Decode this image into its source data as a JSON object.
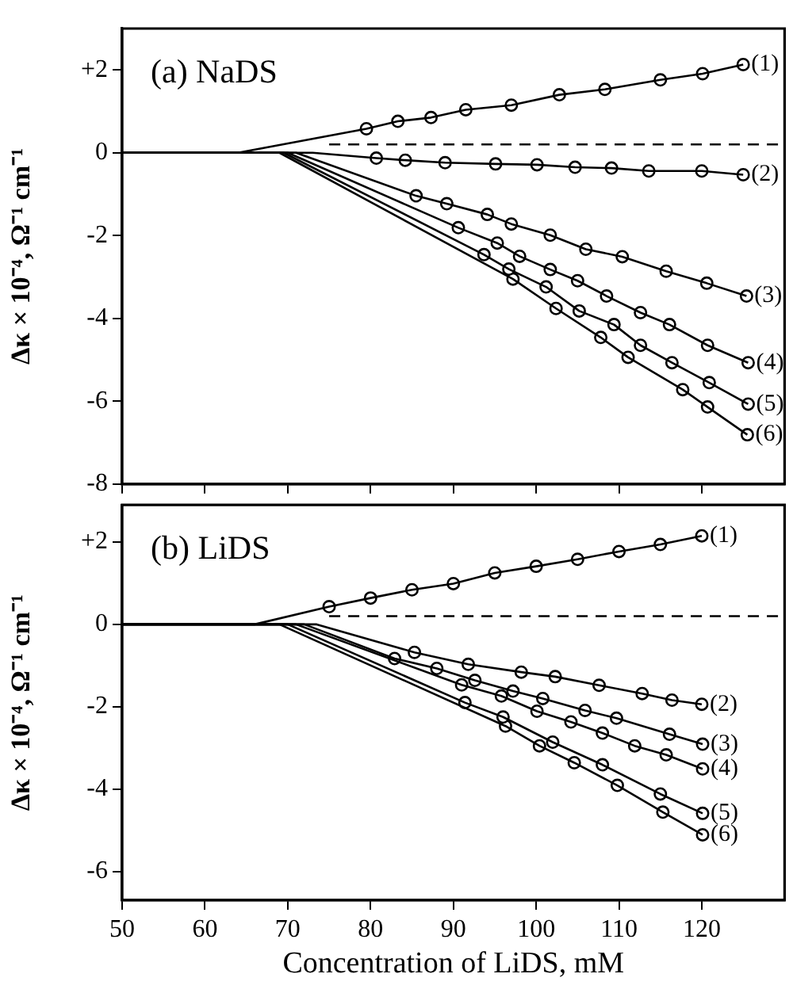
{
  "chart_data": [
    {
      "type": "line",
      "ylabel": "Δκ × 10⁻⁴, Ω⁻¹ cm⁻¹",
      "annotations": [
        "(a) NaDS"
      ],
      "xlim": [
        50,
        130
      ],
      "xticks": [
        50,
        60,
        70,
        80,
        90,
        100,
        110,
        120
      ],
      "ylim": [
        -8,
        3
      ],
      "yticks": [
        {
          "value": 2,
          "label": "+2"
        },
        0,
        -2,
        -4,
        -6,
        -8
      ],
      "tick_labels": "y",
      "series": [
        {
          "color": "#000000",
          "marker": "none",
          "line_style": "dashed",
          "x": [
            75,
            130
          ],
          "values": [
            0.2,
            0.2
          ]
        },
        {
          "color": "#000000",
          "marker": "none",
          "x": [
            50,
            64,
            79.5,
            83.3,
            87.3,
            91.5,
            97.0,
            102.8,
            108.3,
            115.0,
            120.1,
            125.0
          ],
          "values": [
            0,
            0,
            0.58,
            0.76,
            0.85,
            1.04,
            1.15,
            1.4,
            1.53,
            1.76,
            1.91,
            2.13
          ]
        },
        {
          "color": "#000000",
          "marker": "none",
          "x": [
            50,
            73,
            80.7,
            84.2,
            89.0,
            95.1,
            100.1,
            104.7,
            109.1,
            113.6,
            120.0,
            125.0
          ],
          "values": [
            0,
            0,
            -0.13,
            -0.18,
            -0.24,
            -0.27,
            -0.29,
            -0.35,
            -0.37,
            -0.44,
            -0.44,
            -0.53
          ]
        },
        {
          "color": "#000000",
          "marker": "none",
          "x": [
            50,
            71,
            85.5,
            89.2,
            94.1,
            97.0,
            101.7,
            106.0,
            110.4,
            115.7,
            120.6,
            125.4
          ],
          "values": [
            0,
            0,
            -1.04,
            -1.23,
            -1.49,
            -1.72,
            -1.99,
            -2.33,
            -2.51,
            -2.86,
            -3.15,
            -3.46
          ]
        },
        {
          "color": "#000000",
          "marker": "none",
          "x": [
            50,
            70,
            90.6,
            95.3,
            98.0,
            101.7,
            105.0,
            108.5,
            112.6,
            116.1,
            120.7,
            125.6
          ],
          "values": [
            0,
            0,
            -1.81,
            -2.18,
            -2.5,
            -2.82,
            -3.09,
            -3.46,
            -3.86,
            -4.15,
            -4.65,
            -5.07
          ]
        },
        {
          "color": "#000000",
          "marker": "none",
          "x": [
            50,
            69.5,
            93.7,
            96.7,
            101.2,
            105.2,
            109.4,
            112.6,
            116.4,
            120.9,
            125.6
          ],
          "values": [
            0,
            0,
            -2.46,
            -2.81,
            -3.24,
            -3.82,
            -4.15,
            -4.65,
            -5.07,
            -5.55,
            -6.07
          ]
        },
        {
          "color": "#000000",
          "marker": "none",
          "x": [
            50,
            69,
            97.2,
            102.4,
            107.8,
            111.1,
            117.7,
            120.7,
            125.5
          ],
          "values": [
            0,
            0,
            -3.05,
            -3.76,
            -4.46,
            -4.94,
            -5.72,
            -6.14,
            -6.81
          ]
        },
        {
          "type": "scatter",
          "name": "(1)",
          "color": "#000000",
          "marker": "circle",
          "x": [
            79.5,
            83.3,
            87.3,
            91.5,
            97.0,
            102.8,
            108.3,
            115.0,
            120.1,
            125.0
          ],
          "values": [
            0.58,
            0.76,
            0.85,
            1.04,
            1.15,
            1.4,
            1.53,
            1.76,
            1.91,
            2.13
          ]
        },
        {
          "type": "scatter",
          "name": "(2)",
          "color": "#000000",
          "marker": "circle",
          "x": [
            80.7,
            84.2,
            89.0,
            95.1,
            100.1,
            104.7,
            109.1,
            113.6,
            120.0,
            125.0
          ],
          "values": [
            -0.13,
            -0.18,
            -0.24,
            -0.27,
            -0.29,
            -0.35,
            -0.37,
            -0.44,
            -0.44,
            -0.53
          ]
        },
        {
          "type": "scatter",
          "name": "(3)",
          "color": "#000000",
          "marker": "circle",
          "x": [
            85.5,
            89.2,
            94.1,
            97.0,
            101.7,
            106.0,
            110.4,
            115.7,
            120.6,
            125.4
          ],
          "values": [
            -1.04,
            -1.23,
            -1.49,
            -1.72,
            -1.99,
            -2.33,
            -2.51,
            -2.86,
            -3.15,
            -3.46
          ]
        },
        {
          "type": "scatter",
          "name": "(4)",
          "color": "#000000",
          "marker": "circle",
          "x": [
            90.6,
            95.3,
            98.0,
            101.7,
            105.0,
            108.5,
            112.6,
            116.1,
            120.7,
            125.6
          ],
          "values": [
            -1.81,
            -2.18,
            -2.5,
            -2.82,
            -3.09,
            -3.46,
            -3.86,
            -4.15,
            -4.65,
            -5.07
          ]
        },
        {
          "type": "scatter",
          "name": "(5)",
          "color": "#000000",
          "marker": "circle",
          "x": [
            93.7,
            96.7,
            101.2,
            105.2,
            109.4,
            112.6,
            116.4,
            120.9,
            125.6
          ],
          "values": [
            -2.46,
            -2.81,
            -3.24,
            -3.82,
            -4.15,
            -4.65,
            -5.07,
            -5.55,
            -6.07
          ]
        },
        {
          "type": "scatter",
          "name": "(6)",
          "color": "#000000",
          "marker": "circle",
          "x": [
            97.2,
            102.4,
            107.8,
            111.1,
            117.7,
            120.7,
            125.5
          ],
          "values": [
            -3.05,
            -3.76,
            -4.46,
            -4.94,
            -5.72,
            -6.14,
            -6.81
          ]
        }
      ]
    },
    {
      "type": "line",
      "xlabel": "Concentration of LiDS, mM",
      "ylabel": "Δκ × 10⁻⁴, Ω⁻¹ cm⁻¹",
      "annotations": [
        "(b) LiDS"
      ],
      "xlim": [
        50,
        130
      ],
      "xticks": [
        50,
        60,
        70,
        80,
        90,
        100,
        110,
        120
      ],
      "ylim": [
        -6.7,
        2.9
      ],
      "yticks": [
        {
          "value": 2,
          "label": "+2"
        },
        0,
        -2,
        -4,
        -6
      ],
      "series": [
        {
          "color": "#000000",
          "marker": "none",
          "line_style": "dashed",
          "x": [
            75,
            130
          ],
          "values": [
            0.2,
            0.2
          ]
        },
        {
          "color": "#000000",
          "marker": "none",
          "x": [
            50,
            66,
            75,
            80,
            85,
            90,
            95,
            100,
            105,
            110,
            115,
            120
          ],
          "values": [
            0,
            0,
            0.43,
            0.64,
            0.84,
            0.99,
            1.25,
            1.41,
            1.58,
            1.77,
            1.94,
            2.15
          ]
        },
        {
          "color": "#000000",
          "marker": "none",
          "x": [
            50,
            73.5,
            85.3,
            91.8,
            98.2,
            102.3,
            107.6,
            112.8,
            116.4,
            120.0
          ],
          "values": [
            0,
            0,
            -0.68,
            -0.97,
            -1.16,
            -1.27,
            -1.48,
            -1.68,
            -1.84,
            -1.94
          ]
        },
        {
          "color": "#000000",
          "marker": "none",
          "x": [
            50,
            72,
            82.9,
            88.0,
            92.6,
            97.2,
            100.8,
            105.9,
            109.7,
            116.1,
            120.1
          ],
          "values": [
            0,
            0,
            -0.83,
            -1.07,
            -1.36,
            -1.62,
            -1.8,
            -2.09,
            -2.28,
            -2.67,
            -2.91
          ]
        },
        {
          "color": "#000000",
          "marker": "none",
          "x": [
            50,
            71,
            91.0,
            95.8,
            100.1,
            104.2,
            108.0,
            111.9,
            115.7,
            120.1
          ],
          "values": [
            0,
            0,
            -1.47,
            -1.74,
            -2.11,
            -2.37,
            -2.64,
            -2.95,
            -3.17,
            -3.51
          ]
        },
        {
          "color": "#000000",
          "marker": "none",
          "x": [
            50,
            70,
            91.4,
            96.0,
            102.0,
            108.0,
            115.0,
            120.1
          ],
          "values": [
            0,
            0,
            -1.9,
            -2.25,
            -2.86,
            -3.41,
            -4.12,
            -4.59
          ]
        },
        {
          "color": "#000000",
          "marker": "none",
          "x": [
            50,
            69,
            96.3,
            100.4,
            104.6,
            109.8,
            115.3,
            120.1
          ],
          "values": [
            0,
            0,
            -2.47,
            -2.95,
            -3.36,
            -3.91,
            -4.56,
            -5.11
          ]
        },
        {
          "type": "scatter",
          "name": "(1)",
          "color": "#000000",
          "marker": "circle",
          "x": [
            75,
            80,
            85,
            90,
            95,
            100,
            105,
            110,
            115,
            120
          ],
          "values": [
            0.43,
            0.64,
            0.84,
            0.99,
            1.25,
            1.41,
            1.58,
            1.77,
            1.94,
            2.15
          ]
        },
        {
          "type": "scatter",
          "name": "(2)",
          "color": "#000000",
          "marker": "circle",
          "x": [
            85.3,
            91.8,
            98.2,
            102.3,
            107.6,
            112.8,
            116.4,
            120.0
          ],
          "values": [
            -0.68,
            -0.97,
            -1.16,
            -1.27,
            -1.48,
            -1.68,
            -1.84,
            -1.94
          ]
        },
        {
          "type": "scatter",
          "name": "(3)",
          "color": "#000000",
          "marker": "circle",
          "x": [
            82.9,
            88.0,
            92.6,
            97.2,
            100.8,
            105.9,
            109.7,
            116.1,
            120.1
          ],
          "values": [
            -0.83,
            -1.07,
            -1.36,
            -1.62,
            -1.8,
            -2.09,
            -2.28,
            -2.67,
            -2.91
          ]
        },
        {
          "type": "scatter",
          "name": "(4)",
          "color": "#000000",
          "marker": "circle",
          "x": [
            91.0,
            95.8,
            100.1,
            104.2,
            108.0,
            111.9,
            115.7,
            120.1
          ],
          "values": [
            -1.47,
            -1.74,
            -2.11,
            -2.37,
            -2.64,
            -2.95,
            -3.17,
            -3.51
          ]
        },
        {
          "type": "scatter",
          "name": "(5)",
          "color": "#000000",
          "marker": "circle",
          "x": [
            91.4,
            96.0,
            102.0,
            108.0,
            115.0,
            120.1
          ],
          "values": [
            -1.9,
            -2.25,
            -2.86,
            -3.41,
            -4.12,
            -4.59
          ]
        },
        {
          "type": "scatter",
          "name": "(6)",
          "color": "#000000",
          "marker": "circle",
          "x": [
            96.3,
            100.4,
            104.6,
            109.8,
            115.3,
            120.1
          ],
          "values": [
            -2.47,
            -2.95,
            -3.36,
            -3.91,
            -4.56,
            -5.11
          ]
        }
      ]
    }
  ]
}
